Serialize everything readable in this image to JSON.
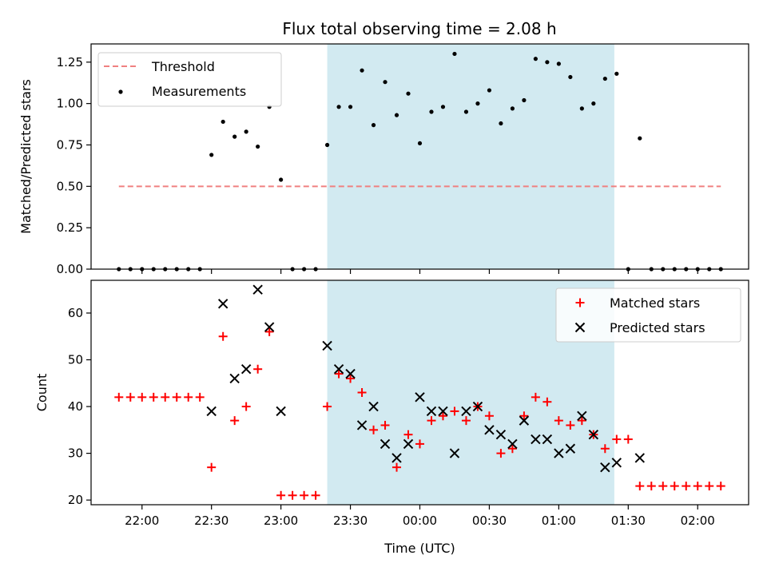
{
  "chart_data": {
    "type": "scatter",
    "title": "Flux total observing time = 2.08 h",
    "xlabel": "Time (UTC)",
    "x_ticks": [
      "22:00",
      "22:30",
      "23:00",
      "23:30",
      "00:00",
      "00:30",
      "01:00",
      "01:30",
      "02:00"
    ],
    "x_tick_minutes": [
      0,
      30,
      60,
      90,
      120,
      150,
      180,
      210,
      240
    ],
    "xlim": [
      -22,
      262
    ],
    "highlight_span": [
      80,
      204
    ],
    "colors": {
      "threshold": "#f08080",
      "span": "#add8e6",
      "matched": "#ff0000",
      "predicted": "#000000",
      "measure": "#000000"
    },
    "panels": [
      {
        "ylabel": "Matched/Predicted stars",
        "ylim": [
          0,
          1.36
        ],
        "y_ticks": [
          "0.00",
          "0.25",
          "0.50",
          "0.75",
          "1.00",
          "1.25"
        ],
        "y_tick_values": [
          0,
          0.25,
          0.5,
          0.75,
          1.0,
          1.25
        ],
        "legend": [
          "Threshold",
          "Measurements"
        ],
        "threshold": {
          "name": "Threshold",
          "y": 0.5,
          "x": [
            -10,
            250
          ]
        },
        "series": [
          {
            "name": "Measurements",
            "x": [
              -10,
              -5,
              0,
              5,
              10,
              15,
              20,
              25,
              30,
              35,
              40,
              45,
              50,
              55,
              60,
              65,
              70,
              75,
              80,
              85,
              90,
              95,
              100,
              105,
              110,
              115,
              120,
              125,
              130,
              135,
              140,
              145,
              150,
              155,
              160,
              165,
              170,
              175,
              180,
              185,
              190,
              195,
              200,
              205,
              210,
              215,
              220,
              225,
              230,
              235,
              240,
              245,
              250
            ],
            "y": [
              0,
              0,
              0,
              0,
              0,
              0,
              0,
              0,
              0.69,
              0.89,
              0.8,
              0.83,
              0.74,
              0.98,
              0.54,
              0,
              0,
              0,
              0.75,
              0.98,
              0.98,
              1.2,
              0.87,
              1.13,
              0.93,
              1.06,
              0.76,
              0.95,
              0.98,
              1.3,
              0.95,
              1.0,
              1.08,
              0.88,
              0.97,
              1.02,
              1.27,
              1.25,
              1.24,
              1.16,
              0.97,
              1.0,
              1.15,
              1.18,
              0,
              0.79,
              0,
              0,
              0,
              0,
              0,
              0,
              0
            ]
          }
        ]
      },
      {
        "ylabel": "Count",
        "ylim": [
          19,
          67
        ],
        "y_ticks": [
          "20",
          "30",
          "40",
          "50",
          "60"
        ],
        "y_tick_values": [
          20,
          30,
          40,
          50,
          60
        ],
        "legend": [
          "Matched stars",
          "Predicted stars"
        ],
        "series": [
          {
            "name": "Matched stars",
            "marker": "plus",
            "x": [
              -10,
              -5,
              0,
              5,
              10,
              15,
              20,
              25,
              30,
              35,
              40,
              45,
              50,
              55,
              60,
              65,
              70,
              75,
              80,
              85,
              90,
              95,
              100,
              105,
              110,
              115,
              120,
              125,
              130,
              135,
              140,
              145,
              150,
              155,
              160,
              165,
              170,
              175,
              180,
              185,
              190,
              195,
              200,
              205,
              210,
              215,
              220,
              225,
              230,
              235,
              240,
              245,
              250
            ],
            "y": [
              42,
              42,
              42,
              42,
              42,
              42,
              42,
              42,
              27,
              55,
              37,
              40,
              48,
              56,
              21,
              21,
              21,
              21,
              40,
              47,
              46,
              43,
              35,
              36,
              27,
              34,
              32,
              37,
              38,
              39,
              37,
              40,
              38,
              30,
              31,
              38,
              42,
              41,
              37,
              36,
              37,
              34,
              31,
              33,
              33,
              23,
              23,
              23,
              23,
              23,
              23,
              23,
              23
            ]
          },
          {
            "name": "Predicted stars",
            "marker": "x",
            "x": [
              30,
              35,
              40,
              45,
              50,
              55,
              60,
              80,
              85,
              90,
              95,
              100,
              105,
              110,
              115,
              120,
              125,
              130,
              135,
              140,
              145,
              150,
              155,
              160,
              165,
              170,
              175,
              180,
              185,
              190,
              195,
              200,
              205,
              215
            ],
            "y": [
              39,
              62,
              46,
              48,
              65,
              57,
              39,
              53,
              48,
              47,
              36,
              40,
              32,
              29,
              32,
              42,
              39,
              39,
              30,
              39,
              40,
              35,
              34,
              32,
              37,
              33,
              33,
              30,
              31,
              38,
              34,
              27,
              28,
              29
            ]
          }
        ]
      }
    ]
  }
}
